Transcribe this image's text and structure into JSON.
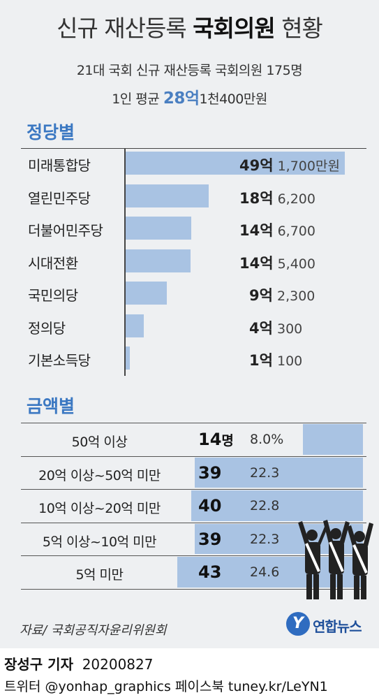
{
  "title_prefix": "신규 재산등록",
  "title_bold": "국회의원",
  "title_suffix": "현황",
  "subtitle": "21대 국회 신규 재산등록  국회의원 175명",
  "average": {
    "prefix": "1인 평균",
    "big": "28억",
    "suffix": "1천400만원"
  },
  "party_section_label": "정당별",
  "amount_section_label": "금액별",
  "chart_data": [
    {
      "type": "bar",
      "title": "정당별",
      "orientation": "horizontal",
      "categories": [
        "미래통합당",
        "열린민주당",
        "더불어민주당",
        "시대전환",
        "국민의당",
        "정의당",
        "기본소득당"
      ],
      "values": [
        491700,
        186200,
        146700,
        145400,
        92300,
        40300,
        10100
      ],
      "value_unit": "만원",
      "labels": [
        {
          "eok": "49억",
          "rest": "1,700만원"
        },
        {
          "eok": "18억",
          "rest": "6,200"
        },
        {
          "eok": "14억",
          "rest": "6,700"
        },
        {
          "eok": "14억",
          "rest": "5,400"
        },
        {
          "eok": "9억",
          "rest": "2,300"
        },
        {
          "eok": "4억",
          "rest": "300"
        },
        {
          "eok": "1억",
          "rest": "100"
        }
      ],
      "color": "#a9c3e3"
    },
    {
      "type": "bar",
      "title": "금액별",
      "orientation": "horizontal",
      "categories": [
        "50억 이상",
        "20억 이상~50억 미만",
        "10억 이상~20억 미만",
        "5억 이상~10억 미만",
        "5억 미만"
      ],
      "counts": [
        14,
        39,
        40,
        39,
        43
      ],
      "count_unit": "명",
      "percents": [
        8.0,
        22.3,
        22.8,
        22.3,
        24.6
      ],
      "percent_labels": [
        "8.0%",
        "22.3",
        "22.8",
        "22.3",
        "24.6"
      ],
      "color": "#a9c3e3"
    }
  ],
  "source": "자료/ 국회공직자윤리위원회",
  "logo": {
    "symbol": "Y",
    "text": "연합뉴스"
  },
  "byline": {
    "reporter": "장성구 기자",
    "date": "20200827"
  },
  "footer": "트위터 @yonhap_graphics  페이스북 tuney.kr/LeYN1",
  "colors": {
    "accent": "#3b78c2",
    "bar": "#a9c3e3",
    "panel": "#eef0f2"
  }
}
